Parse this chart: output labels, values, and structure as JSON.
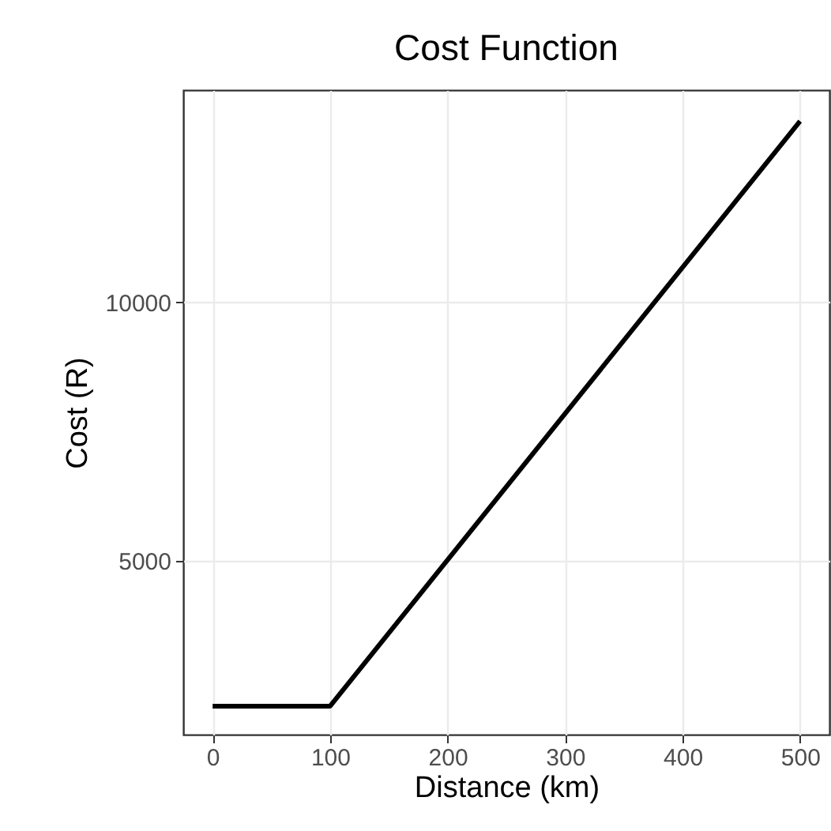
{
  "chart_data": {
    "type": "line",
    "title": "Cost Function",
    "xlabel": "Distance (km)",
    "ylabel": "Cost (R)",
    "x": [
      0,
      100,
      500
    ],
    "series": [
      {
        "color": "#000000",
        "values": [
          2200,
          2200,
          13500
        ]
      }
    ],
    "xlim": [
      -25,
      525
    ],
    "xticks": [
      0,
      100,
      200,
      300,
      400,
      500
    ],
    "ylim": [
      1650,
      14100
    ],
    "yticks": [
      5000,
      10000
    ],
    "grid": true,
    "marker": "none",
    "line_style": "solid"
  }
}
